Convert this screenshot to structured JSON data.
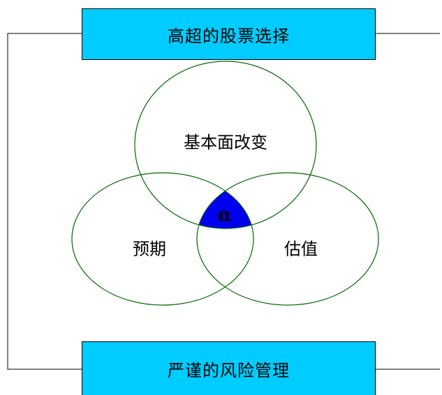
{
  "boxes": {
    "top_label": "高超的股票选择",
    "bottom_label": "严谨的风险管理"
  },
  "circles": {
    "fundamental": "基本面改变",
    "expectation": "预期",
    "valuation": "估值"
  },
  "center_symbol": "α",
  "colors": {
    "box_fill": "#00ccff",
    "circle_stroke": "#006600",
    "center_fill": "#0000ee",
    "line": "#000000"
  }
}
